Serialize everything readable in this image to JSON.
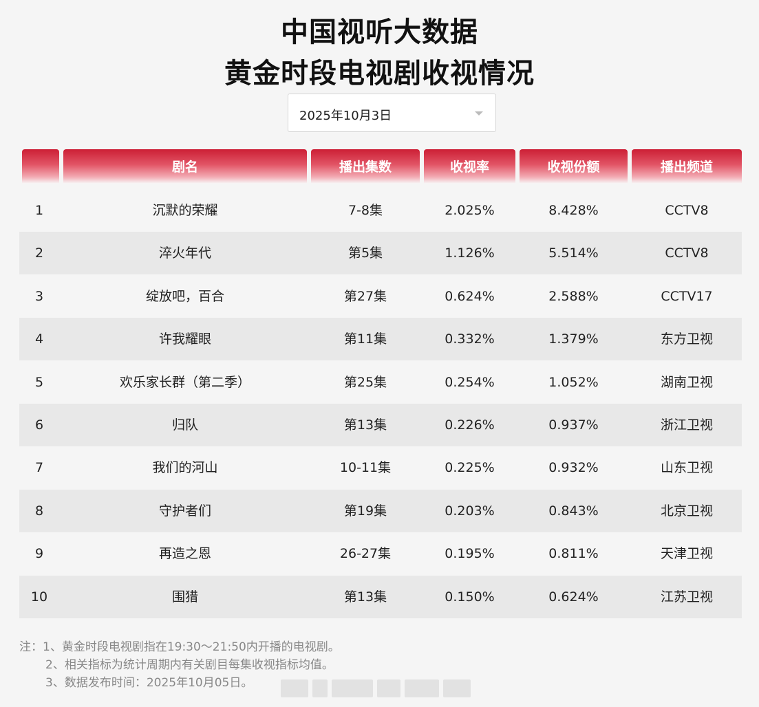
{
  "title": {
    "line1": "中国视听大数据",
    "line2": "黄金时段电视剧收视情况"
  },
  "date_select": {
    "value": "2025年10月3日",
    "icon": "chevron-down-icon"
  },
  "colors": {
    "header_red": "#cc1f35",
    "row_alt": "#e8e8e8",
    "background": "#f5f5f5"
  },
  "table": {
    "headers": [
      "",
      "剧名",
      "播出集数",
      "收视率",
      "收视份额",
      "播出频道"
    ],
    "rows": [
      [
        "1",
        "沉默的荣耀",
        "7-8集",
        "2.025%",
        "8.428%",
        "CCTV8"
      ],
      [
        "2",
        "淬火年代",
        "第5集",
        "1.126%",
        "5.514%",
        "CCTV8"
      ],
      [
        "3",
        "绽放吧，百合",
        "第27集",
        "0.624%",
        "2.588%",
        "CCTV17"
      ],
      [
        "4",
        "许我耀眼",
        "第11集",
        "0.332%",
        "1.379%",
        "东方卫视"
      ],
      [
        "5",
        "欢乐家长群（第二季）",
        "第25集",
        "0.254%",
        "1.052%",
        "湖南卫视"
      ],
      [
        "6",
        "归队",
        "第13集",
        "0.226%",
        "0.937%",
        "浙江卫视"
      ],
      [
        "7",
        "我们的河山",
        "10-11集",
        "0.225%",
        "0.932%",
        "山东卫视"
      ],
      [
        "8",
        "守护者们",
        "第19集",
        "0.203%",
        "0.843%",
        "北京卫视"
      ],
      [
        "9",
        "再造之恩",
        "26-27集",
        "0.195%",
        "0.811%",
        "天津卫视"
      ],
      [
        "10",
        "围猎",
        "第13集",
        "0.150%",
        "0.624%",
        "江苏卫视"
      ]
    ]
  },
  "notes": [
    "注：1、黄金时段电视剧指在19:30～21:50内开播的电视剧。",
    "2、相关指标为统计周期内有关剧目每集收视指标均值。",
    "3、数据发布时间：2025年10月05日。"
  ]
}
